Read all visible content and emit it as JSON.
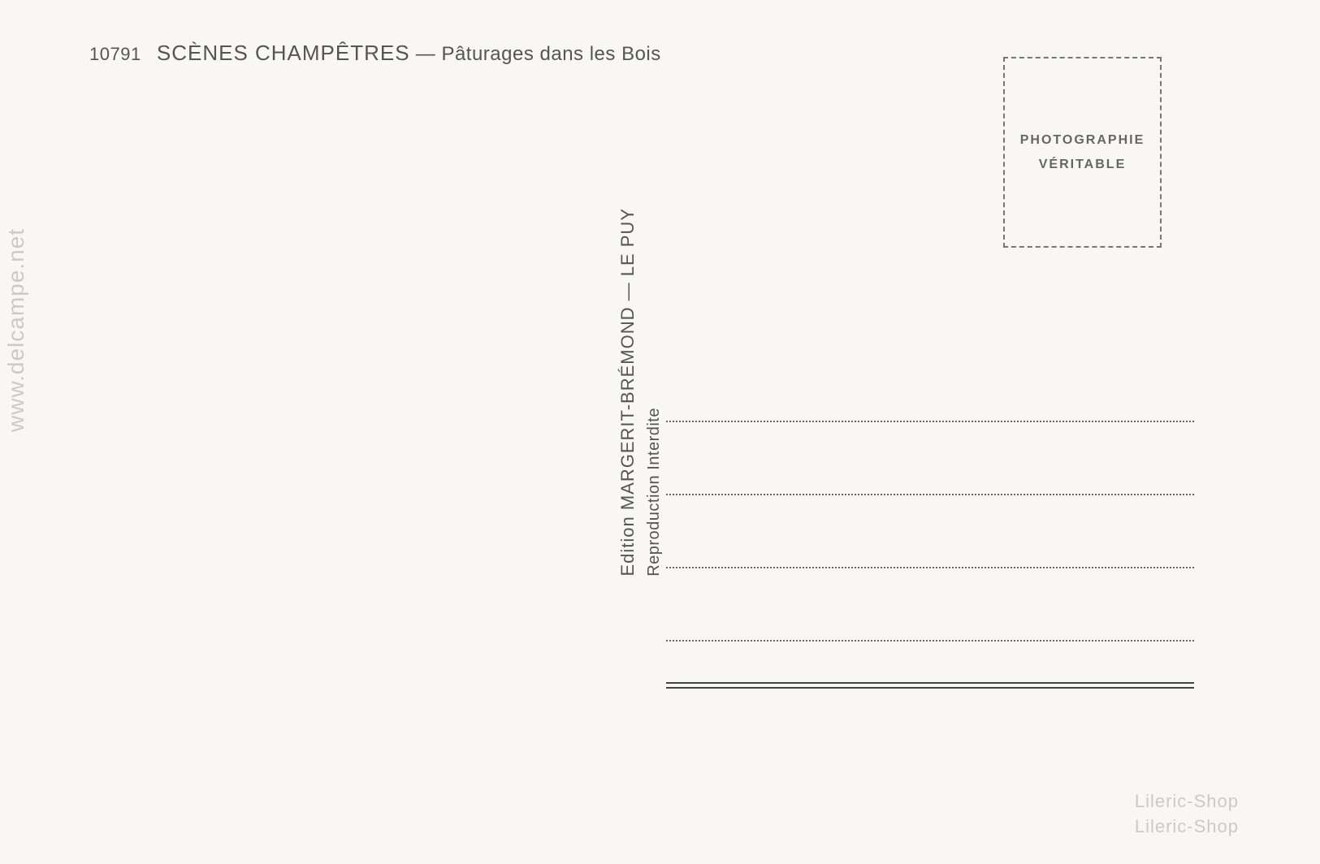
{
  "header": {
    "number": "10791",
    "title": "SCÈNES CHAMPÊTRES",
    "separator": "—",
    "subtitle": "Pâturages dans les Bois"
  },
  "stamp": {
    "line1": "PHOTOGRAPHIE",
    "line2": "VÉRITABLE"
  },
  "publisher": {
    "line1": "Edition MARGERIT-BRÉMOND — LE PUY",
    "line2": "Reproduction Interdite"
  },
  "watermarks": {
    "left": "www.delcampe.net",
    "bottom_line1": "Lileric-Shop",
    "bottom_line2": "Lileric-Shop"
  },
  "styling": {
    "background_color": "#f8f7f3",
    "text_color": "#555",
    "border_color": "#777",
    "line_color": "#666",
    "watermark_color": "rgba(100, 100, 100, 0.3)",
    "header_fontsize": 24,
    "stamp_fontsize": 16,
    "publisher_fontsize": 22,
    "address_line_count": 4,
    "address_line_height": 90,
    "stamp_box_width": 195,
    "stamp_box_height": 235
  }
}
